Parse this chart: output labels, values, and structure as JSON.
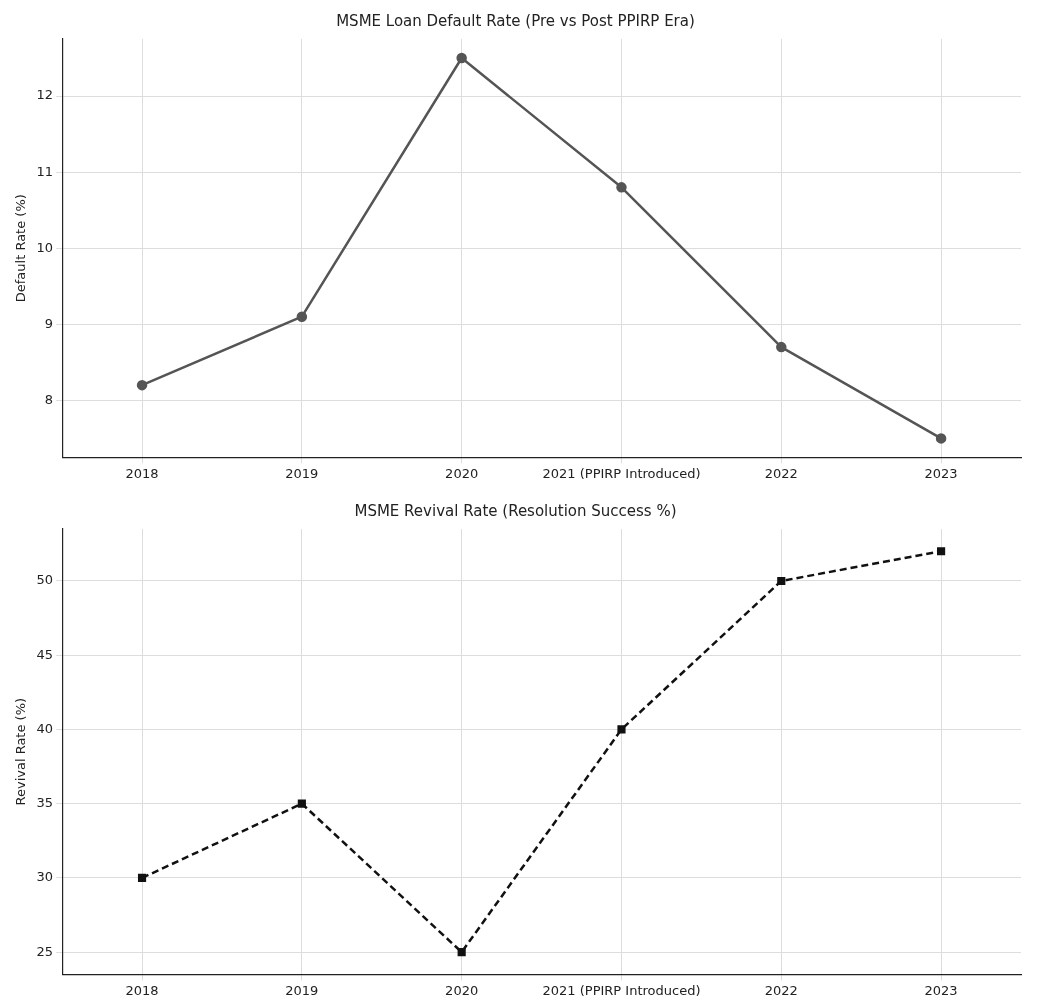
{
  "chart_data": [
    {
      "type": "line",
      "title": "MSME Loan Default Rate (Pre vs Post PPIRP Era)",
      "ylabel": "Default Rate (%)",
      "categories": [
        "2018",
        "2019",
        "2020",
        "2021 (PPIRP Introduced)",
        "2022",
        "2023"
      ],
      "series": [
        {
          "color": "#555555",
          "values": [
            8.2,
            9.1,
            12.5,
            10.8,
            8.7,
            7.5
          ]
        }
      ],
      "ylim": [
        7.25,
        12.75
      ],
      "yticks": [
        8,
        9,
        10,
        11,
        12
      ],
      "grid": true,
      "legend": false,
      "marker": "circle",
      "line_style": "solid"
    },
    {
      "type": "line",
      "title": "MSME Revival Rate (Resolution Success %)",
      "ylabel": "Revival Rate (%)",
      "categories": [
        "2018",
        "2019",
        "2020",
        "2021 (PPIRP Introduced)",
        "2022",
        "2023"
      ],
      "series": [
        {
          "color": "#111111",
          "values": [
            30,
            35,
            25,
            40,
            50,
            52
          ]
        }
      ],
      "ylim": [
        23.5,
        53.5
      ],
      "yticks": [
        25,
        30,
        35,
        40,
        45,
        50
      ],
      "grid": true,
      "legend": false,
      "marker": "square",
      "line_style": "dashed"
    }
  ]
}
